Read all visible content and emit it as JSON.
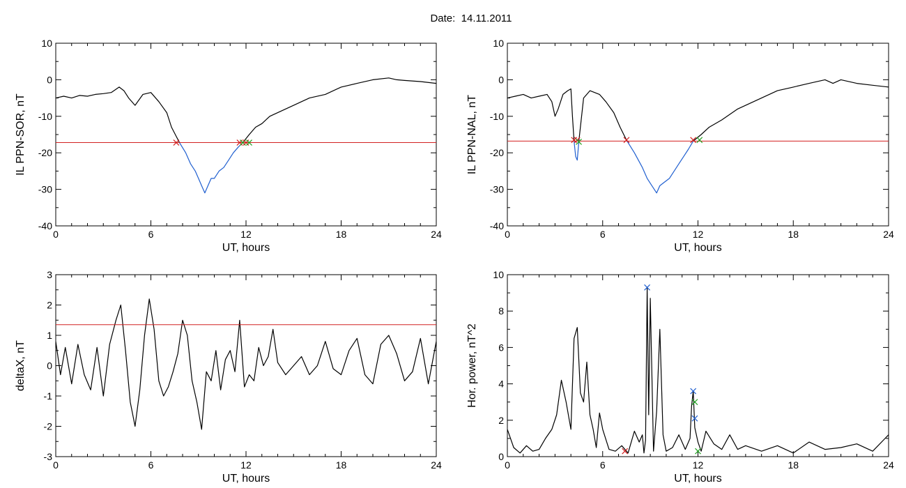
{
  "page_title": "Date:  14.11.2011",
  "chart_data": [
    {
      "type": "line",
      "title": "",
      "xlabel": "UT, hours",
      "ylabel": "IL PPN-SOR, nT",
      "xlim": [
        0,
        24
      ],
      "ylim": [
        -40,
        10
      ],
      "xticks": [
        "0",
        "6",
        "12",
        "18",
        "24"
      ],
      "yticks": [
        "10",
        "0",
        "-10",
        "-20",
        "-30",
        "-40"
      ],
      "threshold": -17.2,
      "series": [
        {
          "color": "#000000",
          "x": [
            0,
            0.5,
            1,
            1.5,
            2,
            2.5,
            3,
            3.5,
            4,
            4.3,
            4.6,
            5,
            5.5,
            6,
            6.5,
            7,
            7.3,
            7.6,
            7.8
          ],
          "y": [
            -5,
            -4.5,
            -5,
            -4.3,
            -4.5,
            -4,
            -3.8,
            -3.5,
            -2,
            -3,
            -5,
            -7,
            -4,
            -3.5,
            -6,
            -9,
            -13,
            -15.5,
            -17.2
          ]
        },
        {
          "color": "#1f5fd0",
          "x": [
            7.8,
            8.2,
            8.5,
            8.8,
            9,
            9.2,
            9.4,
            9.6,
            9.8,
            10,
            10.3,
            10.6,
            10.9,
            11.2,
            11.5,
            11.8
          ],
          "y": [
            -17.2,
            -20,
            -23,
            -25,
            -27,
            -29,
            -31,
            -29,
            -27,
            -27,
            -25,
            -24,
            -22,
            -20,
            -18.5,
            -17.2
          ]
        },
        {
          "color": "#000000",
          "x": [
            11.8,
            12.2,
            12.6,
            13,
            13.5,
            14,
            15,
            16,
            17,
            18,
            19,
            20,
            21,
            21.5,
            22,
            23,
            24
          ],
          "y": [
            -17.2,
            -15,
            -13,
            -12,
            -10,
            -9,
            -7,
            -5,
            -4,
            -2,
            -1,
            0,
            0.5,
            0,
            -0.2,
            -0.5,
            -1
          ]
        }
      ],
      "markers": [
        {
          "x": 7.6,
          "y": -17.2,
          "color": "#d22020"
        },
        {
          "x": 11.6,
          "y": -17.2,
          "color": "#d22020"
        },
        {
          "x": 11.8,
          "y": -17.2,
          "color": "#20a020"
        },
        {
          "x": 12.0,
          "y": -17.2,
          "color": "#d22020"
        },
        {
          "x": 12.2,
          "y": -17.2,
          "color": "#20a020"
        }
      ]
    },
    {
      "type": "line",
      "title": "",
      "xlabel": "UT, hours",
      "ylabel": "IL PPN-NAL, nT",
      "xlim": [
        0,
        24
      ],
      "ylim": [
        -40,
        10
      ],
      "xticks": [
        "0",
        "6",
        "12",
        "18",
        "24"
      ],
      "yticks": [
        "10",
        "0",
        "-10",
        "-20",
        "-30",
        "-40"
      ],
      "threshold": -16.8,
      "series": [
        {
          "color": "#000000",
          "x": [
            0,
            0.5,
            1,
            1.5,
            2,
            2.5,
            2.8,
            3,
            3.2,
            3.5,
            3.8,
            4,
            4.1,
            4.2
          ],
          "y": [
            -5,
            -4.5,
            -4,
            -5,
            -4.5,
            -4,
            -6,
            -10,
            -8,
            -4,
            -3,
            -2.5,
            -10,
            -16.8
          ]
        },
        {
          "color": "#1f5fd0",
          "x": [
            4.2,
            4.3,
            4.4,
            4.5
          ],
          "y": [
            -16.8,
            -21,
            -22,
            -16.8
          ]
        },
        {
          "color": "#000000",
          "x": [
            4.5,
            4.8,
            5.2,
            5.8,
            6.2,
            6.7,
            7.1,
            7.5
          ],
          "y": [
            -16.8,
            -5,
            -3,
            -4,
            -6,
            -9,
            -13,
            -16.5
          ]
        },
        {
          "color": "#1f5fd0",
          "x": [
            7.5,
            8,
            8.5,
            8.8,
            9.1,
            9.4,
            9.6,
            9.9,
            10.2,
            10.5,
            10.8,
            11.1,
            11.4,
            11.7
          ],
          "y": [
            -16.5,
            -20,
            -24,
            -27,
            -29,
            -31,
            -29,
            -28,
            -27,
            -25,
            -23,
            -21,
            -19,
            -16.8
          ]
        },
        {
          "color": "#000000",
          "x": [
            11.7,
            12.2,
            12.7,
            13.5,
            14.5,
            16,
            17,
            18,
            19,
            20,
            20.5,
            21,
            22,
            23,
            24
          ],
          "y": [
            -16.8,
            -15,
            -13,
            -11,
            -8,
            -5,
            -3,
            -2,
            -1,
            0,
            -1,
            0,
            -1,
            -1.5,
            -2
          ]
        }
      ],
      "markers": [
        {
          "x": 4.2,
          "y": -16.5,
          "color": "#d22020"
        },
        {
          "x": 4.4,
          "y": -16.5,
          "color": "#d22020"
        },
        {
          "x": 4.5,
          "y": -17,
          "color": "#20a020"
        },
        {
          "x": 7.5,
          "y": -16.5,
          "color": "#d22020"
        },
        {
          "x": 11.7,
          "y": -16.5,
          "color": "#d22020"
        },
        {
          "x": 12.1,
          "y": -16.5,
          "color": "#20a020"
        }
      ]
    },
    {
      "type": "line",
      "title": "",
      "xlabel": "UT, hours",
      "ylabel": "deltaX, nT",
      "xlim": [
        0,
        24
      ],
      "ylim": [
        -3,
        3
      ],
      "xticks": [
        "0",
        "6",
        "12",
        "18",
        "24"
      ],
      "yticks": [
        "3",
        "2",
        "1",
        "0",
        "-1",
        "-2",
        "-3"
      ],
      "threshold": 1.35,
      "series": [
        {
          "color": "#000000",
          "x": [
            0,
            0.3,
            0.6,
            1,
            1.4,
            1.8,
            2.2,
            2.6,
            3,
            3.4,
            3.8,
            4.1,
            4.4,
            4.7,
            5,
            5.3,
            5.6,
            5.9,
            6.2,
            6.5,
            6.8,
            7.1,
            7.4,
            7.7,
            8,
            8.3,
            8.6,
            8.9,
            9.2,
            9.5,
            9.8,
            10.1,
            10.4,
            10.7,
            11,
            11.3,
            11.6,
            11.9,
            12.2,
            12.5,
            12.8,
            13.1,
            13.4,
            13.7,
            14,
            14.5,
            15,
            15.5,
            16,
            16.5,
            17,
            17.5,
            18,
            18.5,
            19,
            19.5,
            20,
            20.5,
            21,
            21.5,
            22,
            22.5,
            23,
            23.5,
            24
          ],
          "y": [
            0.8,
            -0.3,
            0.6,
            -0.6,
            0.7,
            -0.3,
            -0.8,
            0.6,
            -1,
            0.7,
            1.5,
            2,
            0.5,
            -1.2,
            -2,
            -0.8,
            1,
            2.2,
            1.2,
            -0.5,
            -1,
            -0.7,
            -0.2,
            0.4,
            1.5,
            1,
            -0.5,
            -1.2,
            -2.1,
            -0.2,
            -0.5,
            0.5,
            -0.8,
            0.2,
            0.5,
            -0.2,
            1.5,
            -0.7,
            -0.3,
            -0.5,
            0.6,
            0,
            0.3,
            1.2,
            0.1,
            -0.3,
            0,
            0.3,
            -0.3,
            0,
            0.8,
            -0.1,
            -0.3,
            0.5,
            0.9,
            -0.3,
            -0.6,
            0.7,
            1,
            0.4,
            -0.5,
            -0.2,
            0.9,
            -0.6,
            0.8
          ]
        }
      ],
      "markers": []
    },
    {
      "type": "line",
      "title": "",
      "xlabel": "UT, hours",
      "ylabel": "Hor. power, nT^2",
      "xlim": [
        0,
        24
      ],
      "ylim": [
        0,
        10
      ],
      "xticks": [
        "0",
        "6",
        "12",
        "18",
        "24"
      ],
      "yticks": [
        "10",
        "8",
        "6",
        "4",
        "2",
        "0"
      ],
      "threshold": null,
      "series": [
        {
          "color": "#000000",
          "x": [
            0,
            0.4,
            0.8,
            1.2,
            1.6,
            2,
            2.4,
            2.8,
            3.1,
            3.4,
            3.7,
            4,
            4.2,
            4.4,
            4.6,
            4.8,
            5,
            5.2,
            5.4,
            5.6,
            5.8,
            6,
            6.4,
            6.8,
            7.2,
            7.6,
            8,
            8.3,
            8.5,
            8.6,
            8.7,
            8.8,
            8.9,
            9,
            9.2,
            9.4,
            9.6,
            9.8,
            10,
            10.4,
            10.8,
            11.2,
            11.5,
            11.6,
            11.7,
            11.8,
            12,
            12.2,
            12.5,
            13,
            13.5,
            14,
            14.5,
            15,
            16,
            17,
            18,
            19,
            20,
            21,
            22,
            23,
            24
          ],
          "y": [
            1.5,
            0.5,
            0.2,
            0.6,
            0.3,
            0.4,
            1,
            1.5,
            2.3,
            4.2,
            3,
            1.5,
            6.5,
            7.1,
            3.5,
            3,
            5.2,
            2.3,
            1.5,
            0.5,
            2.4,
            1.5,
            0.4,
            0.3,
            0.6,
            0.2,
            1.4,
            0.8,
            1.2,
            0.2,
            0.9,
            9.3,
            2.3,
            8.7,
            0.3,
            2.5,
            7,
            1.2,
            0.3,
            0.5,
            1.2,
            0.4,
            1,
            2.8,
            3.6,
            1.6,
            0.8,
            0.3,
            1.4,
            0.7,
            0.4,
            1.2,
            0.4,
            0.6,
            0.3,
            0.6,
            0.2,
            0.8,
            0.4,
            0.5,
            0.7,
            0.3,
            1.2
          ]
        }
      ],
      "markers": [
        {
          "x": 8.8,
          "y": 9.3,
          "color": "#1f5fd0"
        },
        {
          "x": 7.4,
          "y": 0.3,
          "color": "#d22020"
        },
        {
          "x": 11.7,
          "y": 3.6,
          "color": "#1f5fd0"
        },
        {
          "x": 11.8,
          "y": 3.0,
          "color": "#20a020"
        },
        {
          "x": 11.8,
          "y": 2.1,
          "color": "#1f5fd0"
        },
        {
          "x": 12.0,
          "y": 0.3,
          "color": "#20a020"
        }
      ]
    }
  ]
}
